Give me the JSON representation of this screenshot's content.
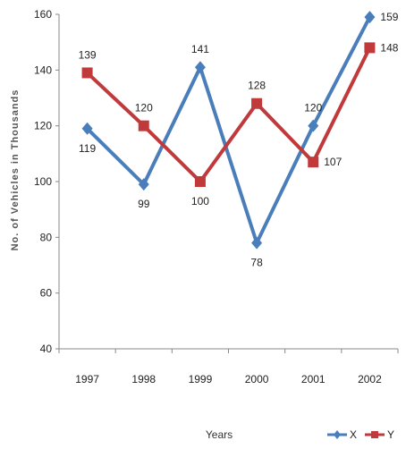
{
  "chart_data": {
    "type": "line",
    "categories": [
      "1997",
      "1998",
      "1999",
      "2000",
      "2001",
      "2002"
    ],
    "series": [
      {
        "name": "X",
        "values": [
          119,
          99,
          141,
          78,
          120,
          159
        ],
        "color": "#4a7ebb",
        "marker": "diamond"
      },
      {
        "name": "Y",
        "values": [
          139,
          120,
          100,
          128,
          107,
          148
        ],
        "color": "#c0393b",
        "marker": "square"
      }
    ],
    "title": "",
    "xlabel": "Years",
    "ylabel": "No. of Vehicles in Thousands",
    "ylim": [
      40,
      160
    ],
    "yticks": [
      40,
      60,
      80,
      100,
      120,
      140,
      160
    ],
    "grid": false,
    "legend_position": "bottom-right"
  }
}
